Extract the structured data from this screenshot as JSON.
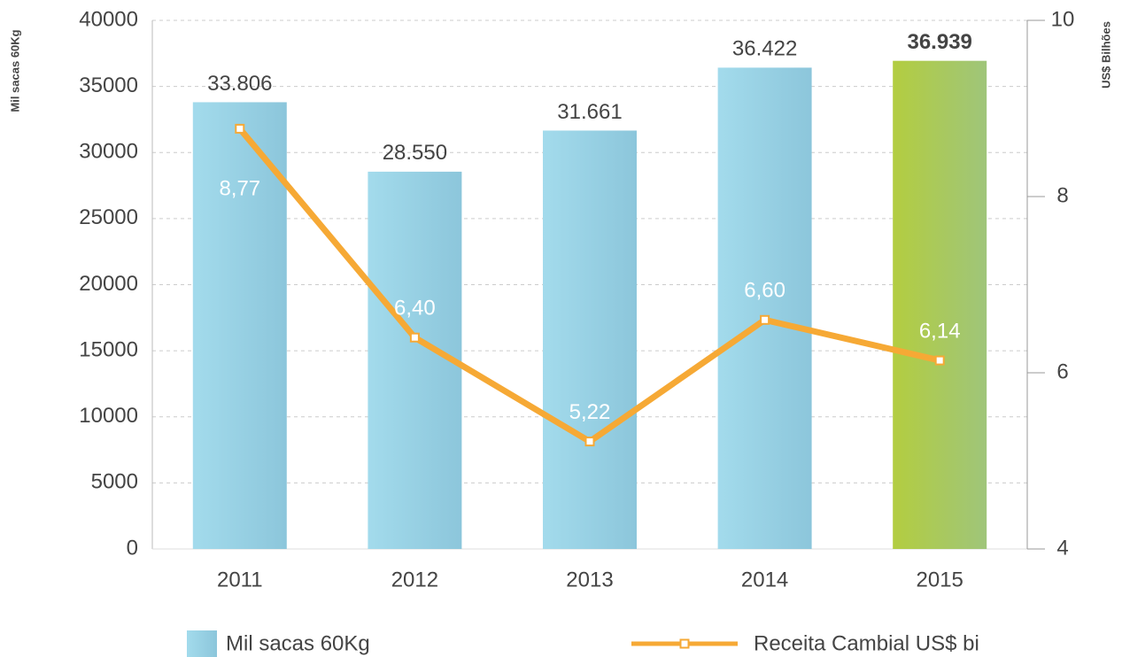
{
  "chart_data": {
    "type": "bar",
    "categories": [
      "2011",
      "2012",
      "2013",
      "2014",
      "2015"
    ],
    "series": [
      {
        "name": "Mil sacas 60Kg",
        "type": "bar",
        "color": "#96d2e5",
        "highlight_color": "#a8c95c",
        "values": [
          33806,
          28550,
          31661,
          36422,
          36939
        ],
        "value_labels": [
          "33.806",
          "28.550",
          "31.661",
          "36.422",
          "36.939"
        ]
      },
      {
        "name": "Receita Cambial US$ bi",
        "type": "line",
        "axis": "y2",
        "color": "#f6a935",
        "values": [
          8.77,
          6.4,
          5.22,
          6.6,
          6.14
        ],
        "value_labels": [
          "8,77",
          "6,40",
          "5,22",
          "6,60",
          "6,14"
        ]
      }
    ],
    "highlight": "2015",
    "y_label": "Mil sacas 60Kg",
    "y2_label": "US$ Bilhões",
    "ylim": [
      0,
      40000
    ],
    "yticks": [
      0,
      5000,
      10000,
      15000,
      20000,
      25000,
      30000,
      35000,
      40000
    ],
    "y2lim": [
      4,
      10
    ],
    "y2ticks": [
      4,
      6,
      8,
      10
    ],
    "grid": true,
    "legend": "bottom"
  }
}
